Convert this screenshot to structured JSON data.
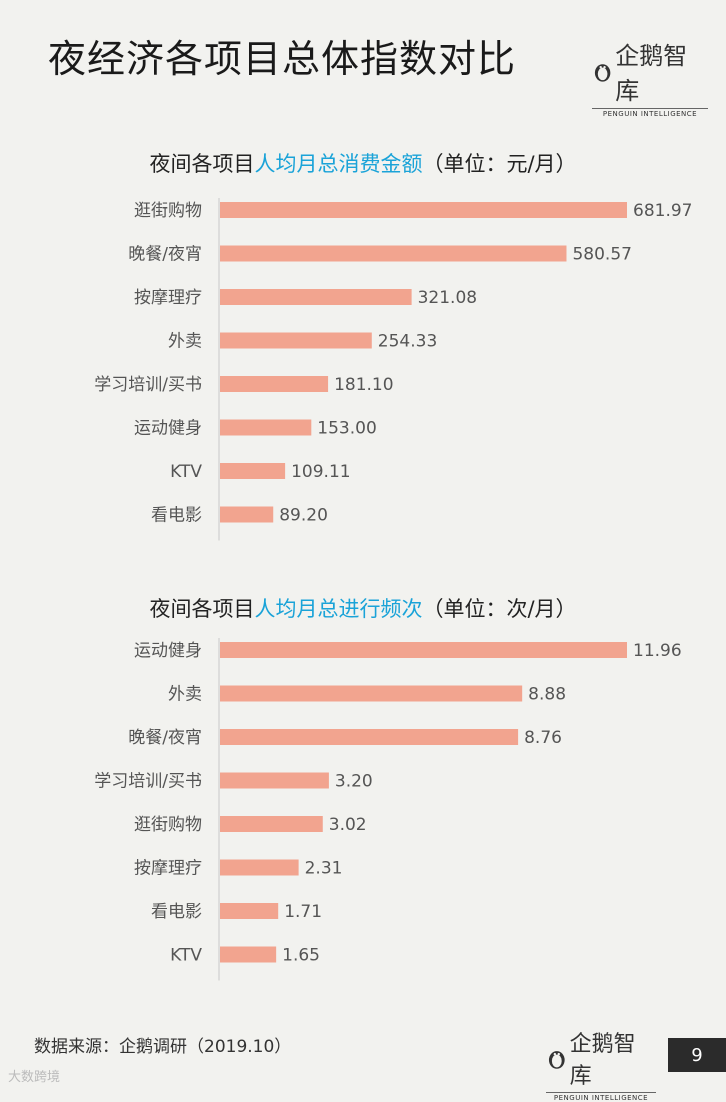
{
  "page": {
    "title": "夜经济各项目总体指数对比",
    "source": "数据来源：企鹅调研（2019.10）",
    "page_number": "9",
    "watermark": "大数跨境"
  },
  "logo": {
    "name": "企鹅智库",
    "subtitle": "PENGUIN INTELLIGENCE"
  },
  "colors": {
    "bar": "#f2a48f",
    "highlight": "#1aa3d8",
    "axis": "#c8c8c8"
  },
  "chart_data": [
    {
      "type": "bar",
      "orientation": "horizontal",
      "title_prefix": "夜间各项目",
      "title_highlight": "人均月总消费金额",
      "title_suffix": "（单位：元/月）",
      "categories": [
        "逛街购物",
        "晚餐/夜宵",
        "按摩理疗",
        "外卖",
        "学习培训/买书",
        "运动健身",
        "KTV",
        "看电影"
      ],
      "values": [
        681.97,
        580.57,
        321.08,
        254.33,
        181.1,
        153.0,
        109.11,
        89.2
      ],
      "value_labels": [
        "681.97",
        "580.57",
        "321.08",
        "254.33",
        "181.10",
        "153.00",
        "109.11",
        "89.20"
      ],
      "xlim": [
        0,
        681.97
      ],
      "grid": false
    },
    {
      "type": "bar",
      "orientation": "horizontal",
      "title_prefix": "夜间各项目",
      "title_highlight": "人均月总进行频次",
      "title_suffix": "（单位：次/月）",
      "categories": [
        "运动健身",
        "外卖",
        "晚餐/夜宵",
        "学习培训/买书",
        "逛街购物",
        "按摩理疗",
        "看电影",
        "KTV"
      ],
      "values": [
        11.96,
        8.88,
        8.76,
        3.2,
        3.02,
        2.31,
        1.71,
        1.65
      ],
      "value_labels": [
        "11.96",
        "8.88",
        "8.76",
        "3.20",
        "3.02",
        "2.31",
        "1.71",
        "1.65"
      ],
      "xlim": [
        0,
        11.96
      ],
      "grid": false
    }
  ]
}
